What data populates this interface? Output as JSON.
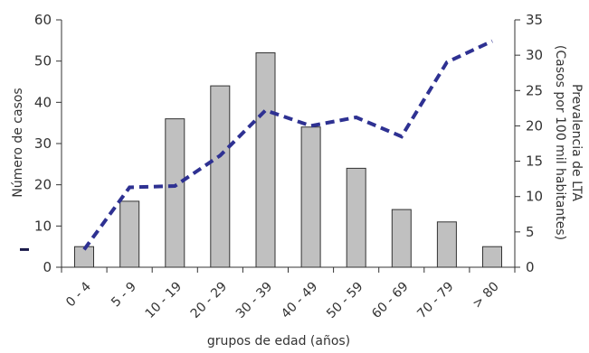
{
  "chart_data": {
    "type": "bar",
    "categories": [
      "0 - 4",
      "5 - 9",
      "10 - 19",
      "20 - 29",
      "30 - 39",
      "40 - 49",
      "50 - 59",
      "60 - 69",
      "70 - 79",
      "> 80"
    ],
    "series": [
      {
        "name": "",
        "type": "bar",
        "axis": "left",
        "color": "#c0c0c0",
        "values": [
          5,
          16,
          36,
          44,
          52,
          34,
          24,
          14,
          11,
          5
        ]
      },
      {
        "name": "",
        "type": "line",
        "axis": "right",
        "style": "dashed",
        "color": "#2e3192",
        "values": [
          2.5,
          11.3,
          11.5,
          15.8,
          22.2,
          20,
          21.2,
          18.5,
          29,
          32
        ]
      }
    ],
    "y_left": {
      "label": "Número de casos",
      "range": [
        0,
        60
      ],
      "ticks": [
        0,
        10,
        20,
        30,
        40,
        50,
        60
      ]
    },
    "y_right": {
      "label_lines": [
        "Prevalencia de LTA",
        "(Casos por 100 mil habitantes)"
      ],
      "range": [
        0,
        35
      ],
      "ticks": [
        0,
        5,
        10,
        15,
        20,
        25,
        30,
        35
      ]
    },
    "xlabel": "grupos de edad (años)",
    "grid": false
  }
}
